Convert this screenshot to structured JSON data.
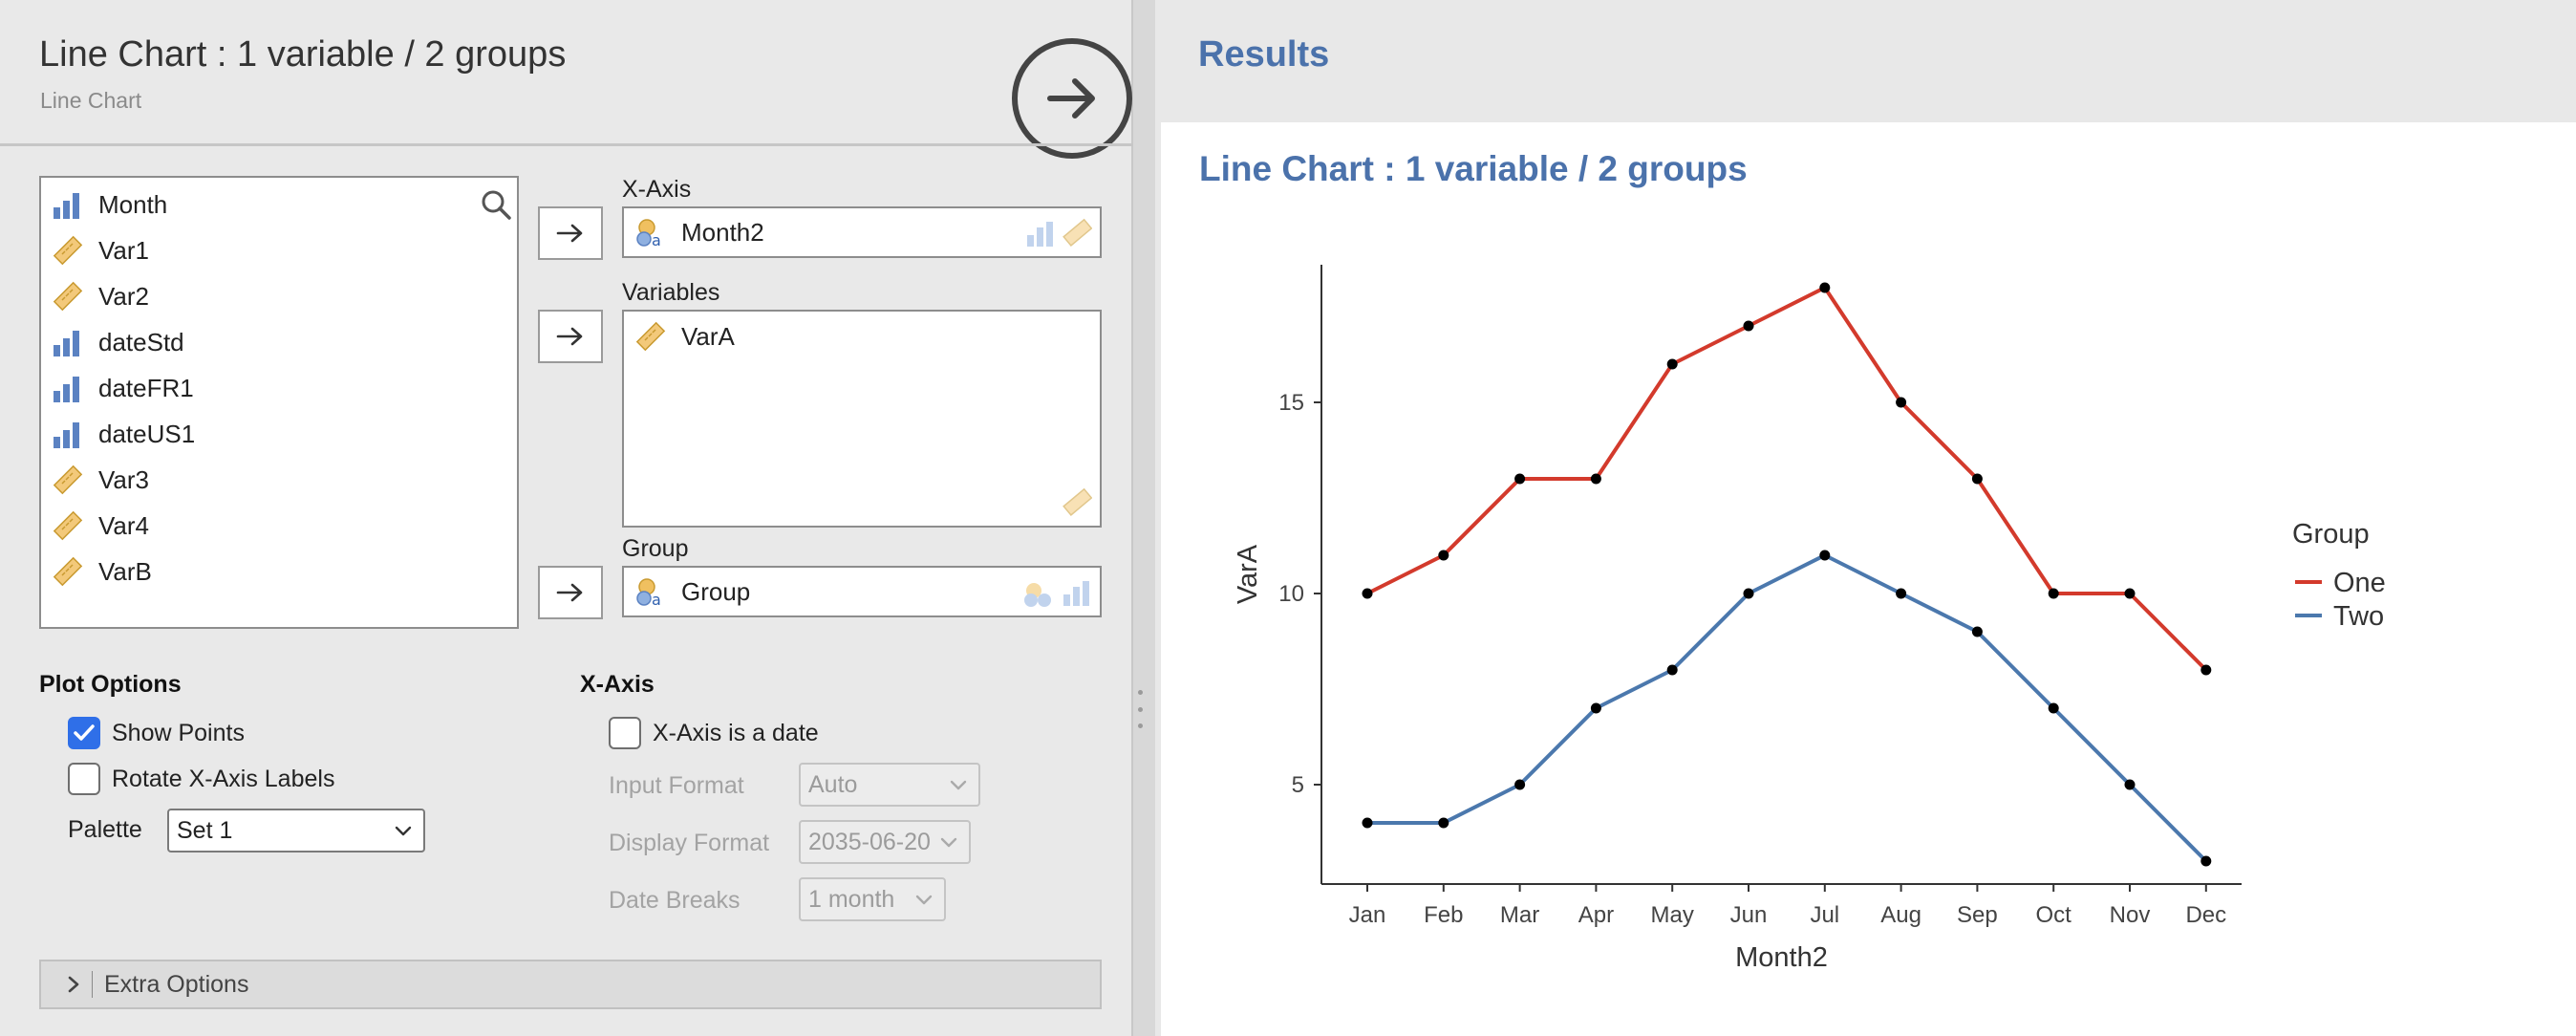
{
  "analysis": {
    "title": "Line Chart : 1 variable / 2 groups",
    "subtitle": "Line Chart"
  },
  "variables": [
    {
      "name": "Month",
      "type": "nominal"
    },
    {
      "name": "Var1",
      "type": "continuous"
    },
    {
      "name": "Var2",
      "type": "continuous"
    },
    {
      "name": "dateStd",
      "type": "nominal"
    },
    {
      "name": "dateFR1",
      "type": "nominal"
    },
    {
      "name": "dateUS1",
      "type": "nominal"
    },
    {
      "name": "Var3",
      "type": "continuous"
    },
    {
      "name": "Var4",
      "type": "continuous"
    },
    {
      "name": "VarB",
      "type": "continuous"
    }
  ],
  "targets": {
    "xaxis_label": "X-Axis",
    "xaxis_value": "Month2",
    "variables_label": "Variables",
    "variables_value": "VarA",
    "group_label": "Group",
    "group_value": "Group"
  },
  "plot_options": {
    "heading": "Plot Options",
    "show_points_label": "Show Points",
    "show_points_checked": true,
    "rotate_label": "Rotate X-Axis Labels",
    "rotate_checked": false,
    "palette_label": "Palette",
    "palette_value": "Set 1"
  },
  "xaxis_options": {
    "heading": "X-Axis",
    "is_date_label": "X-Axis is a date",
    "is_date_checked": false,
    "input_format_label": "Input Format",
    "input_format_value": "Auto",
    "display_format_label": "Display Format",
    "display_format_value": "2035-06-20",
    "date_breaks_label": "Date Breaks",
    "date_breaks_value": "1 month"
  },
  "extra_options_label": "Extra Options",
  "results": {
    "heading": "Results",
    "title": "Line Chart : 1 variable / 2 groups"
  },
  "colors": {
    "accent": "#4b72ab",
    "series_one": "#d33a2c",
    "series_two": "#4b78ad",
    "checkbox": "#2f6fe8"
  },
  "chart_data": {
    "type": "line",
    "xlabel": "Month2",
    "ylabel": "VarA",
    "categories": [
      "Jan",
      "Feb",
      "Mar",
      "Apr",
      "May",
      "Jun",
      "Jul",
      "Aug",
      "Sep",
      "Oct",
      "Nov",
      "Dec"
    ],
    "yticks": [
      5,
      10,
      15
    ],
    "ylim": [
      2.4,
      18.6
    ],
    "grid": false,
    "legend_title": "Group",
    "legend_position": "right",
    "series": [
      {
        "name": "One",
        "color": "#d33a2c",
        "values": [
          10,
          11,
          13,
          13,
          16,
          17,
          18,
          15,
          13,
          10,
          10,
          8
        ]
      },
      {
        "name": "Two",
        "color": "#4b78ad",
        "values": [
          4,
          4,
          5,
          7,
          8,
          10,
          11,
          10,
          9,
          7,
          5,
          3
        ]
      }
    ],
    "show_points": true
  }
}
